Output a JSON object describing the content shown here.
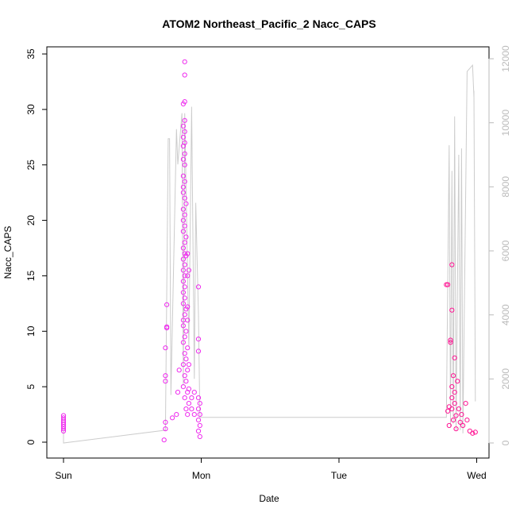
{
  "chart_data": {
    "type": "scatter",
    "title": "ATOM2 Northeast_Pacific_2 Nacc_CAPS",
    "xlabel": "Date",
    "ylabel": "Nacc_CAPS",
    "x_ticks": [
      "Sun",
      "Mon",
      "Tue",
      "Wed"
    ],
    "ylim": [
      0,
      35
    ],
    "y_ticks": [
      0,
      5,
      10,
      15,
      20,
      25,
      30,
      35
    ],
    "y2lim": [
      0,
      12000
    ],
    "y2_ticks": [
      0,
      2000,
      4000,
      6000,
      8000,
      10000,
      12000
    ],
    "colors": {
      "points_early": "#ee2aee",
      "points_late": "#ff1493",
      "secondary_line": "#cccccc",
      "secondary_axis": "#bbbbbb",
      "axis": "#000000"
    },
    "series": [
      {
        "color": "#ee2aee",
        "marker": "open-circle",
        "points": [
          [
            "Sun",
            1.0
          ],
          [
            "Sun",
            1.2
          ],
          [
            "Sun",
            1.4
          ],
          [
            "Sun",
            1.6
          ],
          [
            "Sun",
            1.8
          ],
          [
            "Sun",
            2.0
          ],
          [
            "Sun",
            2.2
          ],
          [
            "Sun",
            2.4
          ],
          [
            "Sun+0.73",
            0.2
          ],
          [
            "Sun+0.74",
            1.2
          ],
          [
            "Sun+0.74",
            1.8
          ],
          [
            "Sun+0.74",
            5.5
          ],
          [
            "Sun+0.74",
            6.0
          ],
          [
            "Sun+0.74",
            8.5
          ],
          [
            "Sun+0.75",
            10.3
          ],
          [
            "Sun+0.75",
            10.4
          ],
          [
            "Sun+0.75",
            12.4
          ],
          [
            "Sun+0.79",
            2.2
          ],
          [
            "Sun+0.82",
            2.5
          ],
          [
            "Sun+0.83",
            4.5
          ],
          [
            "Sun+0.84",
            6.5
          ],
          [
            "Sun+0.87",
            5.0
          ],
          [
            "Sun+0.87",
            7.0
          ],
          [
            "Sun+0.87",
            9.0
          ],
          [
            "Sun+0.87",
            10.5
          ],
          [
            "Sun+0.87",
            11.0
          ],
          [
            "Sun+0.87",
            12.5
          ],
          [
            "Sun+0.87",
            13.5
          ],
          [
            "Sun+0.87",
            14.5
          ],
          [
            "Sun+0.87",
            15.5
          ],
          [
            "Sun+0.87",
            16.5
          ],
          [
            "Sun+0.87",
            17.5
          ],
          [
            "Sun+0.87",
            19.0
          ],
          [
            "Sun+0.87",
            20.0
          ],
          [
            "Sun+0.87",
            21.0
          ],
          [
            "Sun+0.87",
            22.5
          ],
          [
            "Sun+0.87",
            23.0
          ],
          [
            "Sun+0.87",
            24.0
          ],
          [
            "Sun+0.87",
            25.5
          ],
          [
            "Sun+0.87",
            26.7
          ],
          [
            "Sun+0.87",
            27.5
          ],
          [
            "Sun+0.87",
            28.5
          ],
          [
            "Sun+0.87",
            30.5
          ],
          [
            "Sun+0.88",
            4.0
          ],
          [
            "Sun+0.88",
            6.0
          ],
          [
            "Sun+0.88",
            8.0
          ],
          [
            "Sun+0.88",
            9.5
          ],
          [
            "Sun+0.88",
            11.5
          ],
          [
            "Sun+0.88",
            13.0
          ],
          [
            "Sun+0.88",
            14.0
          ],
          [
            "Sun+0.88",
            15.0
          ],
          [
            "Sun+0.88",
            16.0
          ],
          [
            "Sun+0.88",
            17.0
          ],
          [
            "Sun+0.88",
            18.0
          ],
          [
            "Sun+0.88",
            19.5
          ],
          [
            "Sun+0.88",
            20.5
          ],
          [
            "Sun+0.88",
            22.0
          ],
          [
            "Sun+0.88",
            23.5
          ],
          [
            "Sun+0.88",
            25.0
          ],
          [
            "Sun+0.88",
            26.0
          ],
          [
            "Sun+0.88",
            27.0
          ],
          [
            "Sun+0.88",
            28.0
          ],
          [
            "Sun+0.88",
            29.0
          ],
          [
            "Sun+0.88",
            30.7
          ],
          [
            "Sun+0.88",
            33.1
          ],
          [
            "Sun+0.88",
            34.3
          ],
          [
            "Sun+0.89",
            3.0
          ],
          [
            "Sun+0.89",
            5.5
          ],
          [
            "Sun+0.89",
            7.5
          ],
          [
            "Sun+0.89",
            10.0
          ],
          [
            "Sun+0.89",
            12.0
          ],
          [
            "Sun+0.89",
            16.8
          ],
          [
            "Sun+0.89",
            18.5
          ],
          [
            "Sun+0.89",
            21.5
          ],
          [
            "Sun+0.90",
            2.5
          ],
          [
            "Sun+0.90",
            4.5
          ],
          [
            "Sun+0.90",
            6.5
          ],
          [
            "Sun+0.90",
            8.5
          ],
          [
            "Sun+0.90",
            11.0
          ],
          [
            "Sun+0.90",
            12.2
          ],
          [
            "Sun+0.90",
            15.0
          ],
          [
            "Sun+0.90",
            17.0
          ],
          [
            "Sun+0.91",
            3.5
          ],
          [
            "Sun+0.91",
            4.8
          ],
          [
            "Sun+0.91",
            7.0
          ],
          [
            "Sun+0.91",
            15.5
          ],
          [
            "Sun+0.93",
            3.0
          ],
          [
            "Sun+0.93",
            4.0
          ],
          [
            "Sun+0.95",
            2.5
          ],
          [
            "Sun+0.95",
            4.5
          ],
          [
            "Sun+0.98",
            1.0
          ],
          [
            "Sun+0.98",
            2.0
          ],
          [
            "Sun+0.98",
            3.0
          ],
          [
            "Sun+0.98",
            4.0
          ],
          [
            "Sun+0.98",
            8.2
          ],
          [
            "Sun+0.98",
            9.3
          ],
          [
            "Sun+0.98",
            14.0
          ],
          [
            "Sun+0.99",
            0.5
          ],
          [
            "Sun+0.99",
            1.5
          ],
          [
            "Sun+0.99",
            2.5
          ],
          [
            "Sun+0.99",
            3.5
          ]
        ]
      },
      {
        "color": "#ff1493",
        "marker": "open-circle",
        "points": [
          [
            "Sun+2.78",
            14.2
          ],
          [
            "Sun+2.79",
            14.2
          ],
          [
            "Sun+2.79",
            2.8
          ],
          [
            "Sun+2.80",
            1.5
          ],
          [
            "Sun+2.80",
            3.2
          ],
          [
            "Sun+2.81",
            9.0
          ],
          [
            "Sun+2.81",
            9.2
          ],
          [
            "Sun+2.82",
            16.0
          ],
          [
            "Sun+2.82",
            11.9
          ],
          [
            "Sun+2.82",
            3.0
          ],
          [
            "Sun+2.82",
            4.0
          ],
          [
            "Sun+2.82",
            5.0
          ],
          [
            "Sun+2.83",
            2.0
          ],
          [
            "Sun+2.83",
            6.0
          ],
          [
            "Sun+2.84",
            7.6
          ],
          [
            "Sun+2.84",
            4.5
          ],
          [
            "Sun+2.84",
            3.5
          ],
          [
            "Sun+2.85",
            1.2
          ],
          [
            "Sun+2.85",
            2.4
          ],
          [
            "Sun+2.86",
            5.5
          ],
          [
            "Sun+2.87",
            3.0
          ],
          [
            "Sun+2.88",
            1.8
          ],
          [
            "Sun+2.89",
            2.5
          ],
          [
            "Sun+2.90",
            1.5
          ],
          [
            "Sun+2.92",
            3.5
          ],
          [
            "Sun+2.93",
            2.0
          ],
          [
            "Sun+2.95",
            1.0
          ],
          [
            "Sun+2.97",
            0.8
          ],
          [
            "Sun+2.99",
            0.9
          ]
        ]
      }
    ],
    "secondary_series": {
      "color": "#cccccc",
      "axis": "right",
      "points": [
        [
          "Sun",
          400
        ],
        [
          "Sun",
          0
        ],
        [
          "Sun+0.74",
          400
        ],
        [
          "Sun+0.76",
          9500
        ],
        [
          "Sun+0.77",
          9500
        ],
        [
          "Sun+0.78",
          1500
        ],
        [
          "Sun+0.82",
          9800
        ],
        [
          "Sun+0.83",
          8700
        ],
        [
          "Sun+0.86",
          10300
        ],
        [
          "Sun+0.87",
          1800
        ],
        [
          "Sun+0.88",
          10300
        ],
        [
          "Sun+0.91",
          3000
        ],
        [
          "Sun+0.93",
          10500
        ],
        [
          "Sun+0.95",
          2000
        ],
        [
          "Sun+0.96",
          7500
        ],
        [
          "Sun+0.98",
          4000
        ],
        [
          "Sun+0.99",
          800
        ],
        [
          "Sun+2.78",
          800
        ],
        [
          "Sun+2.80",
          9300
        ],
        [
          "Sun+2.81",
          500
        ],
        [
          "Sun+2.82",
          8500
        ],
        [
          "Sun+2.83",
          600
        ],
        [
          "Sun+2.84",
          10200
        ],
        [
          "Sun+2.85",
          400
        ],
        [
          "Sun+2.87",
          9000
        ],
        [
          "Sun+2.88",
          400
        ],
        [
          "Sun+2.89",
          9200
        ],
        [
          "Sun+2.90",
          300
        ],
        [
          "Sun+2.93",
          11600
        ],
        [
          "Sun+2.97",
          11800
        ],
        [
          "Sun+2.98",
          10800
        ],
        [
          "Sun+2.98",
          11000
        ],
        [
          "Sun+2.99",
          1300
        ]
      ]
    }
  }
}
